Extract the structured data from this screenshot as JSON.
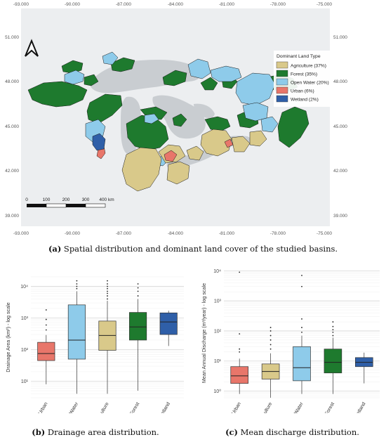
{
  "captions": {
    "a_letter": "(a)",
    "a_text": " Spatial distribution and dominant land cover of the studied basins.",
    "b_letter": "(b)",
    "b_text": " Drainage area distribution.",
    "c_letter": "(c)",
    "c_text": " Mean discharge distribution."
  },
  "map": {
    "lon_ticks": [
      "-93.000",
      "-90.000",
      "-87.000",
      "-84.000",
      "-81.000",
      "-78.000",
      "-75.000"
    ],
    "lat_ticks": [
      "51.000",
      "48.000",
      "45.000",
      "42.000",
      "39.000"
    ],
    "legend_title": "Dominant Land Type",
    "legend": [
      {
        "label": "Agriculture (37%)",
        "color": "#d9c98a"
      },
      {
        "label": "Forest (35%)",
        "color": "#1e7a2e"
      },
      {
        "label": "Open Water (20%)",
        "color": "#8ecbea"
      },
      {
        "label": "Urban (6%)",
        "color": "#e8766a"
      },
      {
        "label": "Wetland (2%)",
        "color": "#2f5fa8"
      }
    ],
    "scalebar_labels": [
      "0",
      "100",
      "200",
      "300",
      "400 km"
    ]
  },
  "chart_data": [
    {
      "type": "box",
      "ylabel": "Drainage Area (km²) - log scale",
      "yscale": "log",
      "ylim": [
        3,
        20000
      ],
      "y_ticks": [
        "10¹",
        "10²",
        "10³",
        "10⁴"
      ],
      "categories": [
        "Urban",
        "Open Water",
        "Agriculture",
        "Forest",
        "Wetland"
      ],
      "colors": [
        "#e8766a",
        "#8ecbea",
        "#d9c98a",
        "#1e7a2e",
        "#2f5fa8"
      ],
      "boxes": [
        {
          "min": 8,
          "q1": 45,
          "median": 75,
          "q3": 170,
          "max": 290,
          "outliers": [
            420,
            600,
            900,
            1800
          ]
        },
        {
          "min": 4,
          "q1": 50,
          "median": 200,
          "q3": 2600,
          "max": 7000,
          "outliers": [
            8500,
            10000,
            12000,
            15000
          ]
        },
        {
          "min": 4,
          "q1": 95,
          "median": 280,
          "q3": 800,
          "max": 3500,
          "outliers": [
            4000,
            5000,
            6000,
            7000,
            8500,
            10000,
            12000,
            15000
          ]
        },
        {
          "min": 5,
          "q1": 200,
          "median": 520,
          "q3": 1500,
          "max": 4000,
          "outliers": [
            5000,
            7000,
            9000,
            12000
          ]
        },
        {
          "min": 130,
          "q1": 300,
          "median": 750,
          "q3": 1450,
          "max": 1700,
          "outliers": []
        }
      ]
    },
    {
      "type": "box",
      "ylabel": "Mean Annual Discharge (m³/year) - log scale",
      "yscale": "log",
      "ylim": [
        0.6,
        12000
      ],
      "y_ticks": [
        "10⁰",
        "10¹",
        "10²",
        "10³",
        "10⁴"
      ],
      "categories": [
        "Urban",
        "Agriculture",
        "Open Water",
        "Forest",
        "Wetland"
      ],
      "colors": [
        "#e8766a",
        "#d9c98a",
        "#8ecbea",
        "#1e7a2e",
        "#2f5fa8"
      ],
      "boxes": [
        {
          "min": 0.8,
          "q1": 1.8,
          "median": 3.2,
          "q3": 6.5,
          "max": 12,
          "outliers": [
            20,
            25,
            80,
            9000
          ]
        },
        {
          "min": 0.6,
          "q1": 2.5,
          "median": 4.5,
          "q3": 8,
          "max": 18,
          "outliers": [
            25,
            35,
            50,
            70,
            100,
            130
          ]
        },
        {
          "min": 0.8,
          "q1": 2.2,
          "median": 6,
          "q3": 30,
          "max": 70,
          "outliers": [
            90,
            130,
            250,
            3000,
            7000
          ]
        },
        {
          "min": 0.8,
          "q1": 4,
          "median": 9,
          "q3": 25,
          "max": 60,
          "outliers": [
            70,
            90,
            110,
            140,
            200
          ]
        },
        {
          "min": 1.8,
          "q1": 6.5,
          "median": 9,
          "q3": 13,
          "max": 19,
          "outliers": []
        }
      ]
    }
  ]
}
